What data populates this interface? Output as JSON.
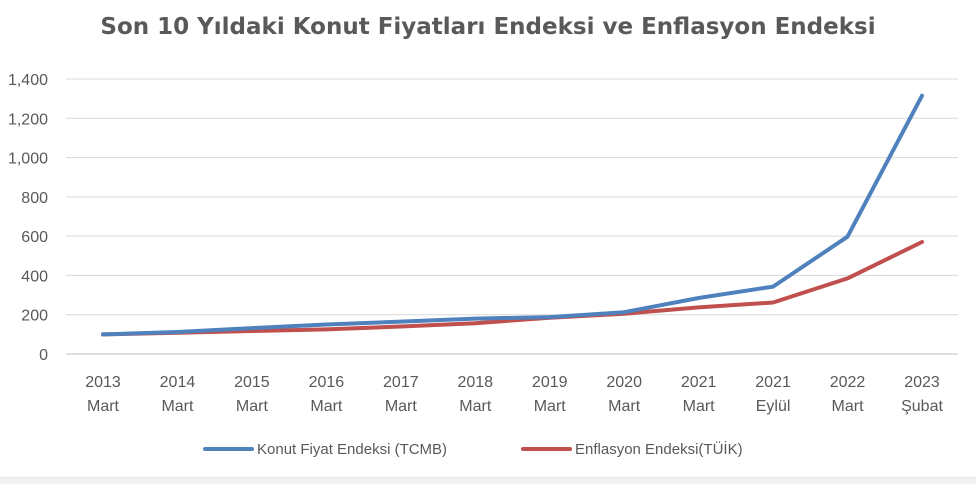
{
  "chart_data": {
    "type": "line",
    "title": "Son 10 Yıldaki Konut Fiyatları Endeksi ve Enflasyon Endeksi",
    "categories": [
      [
        "2013",
        "Mart"
      ],
      [
        "2014",
        "Mart"
      ],
      [
        "2015",
        "Mart"
      ],
      [
        "2016",
        "Mart"
      ],
      [
        "2017",
        "Mart"
      ],
      [
        "2018",
        "Mart"
      ],
      [
        "2019",
        "Mart"
      ],
      [
        "2020",
        "Mart"
      ],
      [
        "2021",
        "Mart"
      ],
      [
        "2021",
        "Eylül"
      ],
      [
        "2022",
        "Mart"
      ],
      [
        "2023",
        "Şubat"
      ]
    ],
    "y_ticks": [
      "0",
      "200",
      "400",
      "600",
      "800",
      "1,000",
      "1,200",
      "1,400"
    ],
    "ylim": [
      0,
      1400
    ],
    "grid": true,
    "legend_position": "bottom",
    "series": [
      {
        "name": "Konut Fiyat Endeksi (TCMB)",
        "color": "#4f81bd",
        "values": [
          100,
          112,
          132,
          150,
          165,
          180,
          188,
          213,
          285,
          343,
          597,
          1315
        ]
      },
      {
        "name": "Enflasyon Endeksi(TÜİK)",
        "color": "#c0504d",
        "values": [
          100,
          108,
          117,
          125,
          140,
          157,
          185,
          205,
          237,
          262,
          385,
          570
        ]
      }
    ]
  }
}
